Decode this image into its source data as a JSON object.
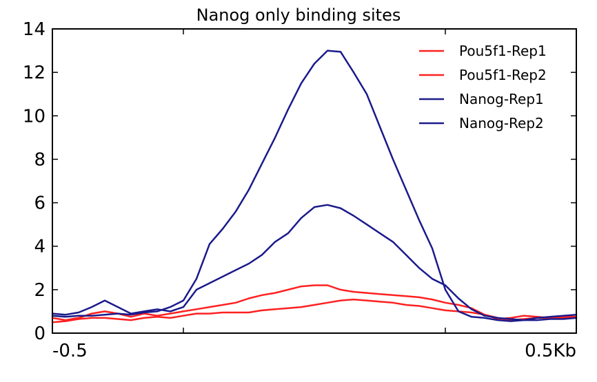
{
  "chart_data": {
    "type": "line",
    "title": "Nanog only binding sites",
    "xlabel": "",
    "ylabel": "",
    "xlim": [
      -0.5,
      0.5
    ],
    "ylim": [
      0,
      14
    ],
    "x_ticks": [
      -0.5,
      -0.25,
      0.25,
      0.5
    ],
    "x_tick_labels": [
      "-0.5",
      "",
      "",
      "0.5Kb"
    ],
    "y_ticks": [
      0,
      2,
      4,
      6,
      8,
      10,
      12,
      14
    ],
    "y_tick_labels": [
      "0",
      "2",
      "4",
      "6",
      "8",
      "10",
      "12",
      "14"
    ],
    "grid": false,
    "legend_position": "top-right",
    "colors": {
      "pou": "#ff2020",
      "nanog": "#1a1a8c"
    },
    "x": [
      -0.5,
      -0.475,
      -0.45,
      -0.425,
      -0.4,
      -0.375,
      -0.35,
      -0.325,
      -0.3,
      -0.275,
      -0.25,
      -0.225,
      -0.2,
      -0.175,
      -0.15,
      -0.125,
      -0.1,
      -0.075,
      -0.05,
      -0.025,
      0,
      0.025,
      0.05,
      0.075,
      0.1,
      0.125,
      0.15,
      0.175,
      0.2,
      0.225,
      0.25,
      0.275,
      0.3,
      0.325,
      0.35,
      0.375,
      0.4,
      0.425,
      0.45,
      0.475,
      0.5
    ],
    "series": [
      {
        "name": "Pou5f1-Rep1",
        "color": "#ff2020",
        "values": [
          0.7,
          0.6,
          0.7,
          0.9,
          1.0,
          0.9,
          0.75,
          0.9,
          0.8,
          0.9,
          1.0,
          1.1,
          1.2,
          1.3,
          1.4,
          1.6,
          1.75,
          1.85,
          2.0,
          2.15,
          2.2,
          2.2,
          2.0,
          1.9,
          1.85,
          1.8,
          1.75,
          1.7,
          1.65,
          1.55,
          1.4,
          1.3,
          1.15,
          0.85,
          0.65,
          0.7,
          0.8,
          0.75,
          0.7,
          0.75,
          0.75
        ]
      },
      {
        "name": "Pou5f1-Rep2",
        "color": "#ff2020",
        "values": [
          0.5,
          0.55,
          0.65,
          0.7,
          0.7,
          0.65,
          0.6,
          0.7,
          0.75,
          0.7,
          0.8,
          0.9,
          0.9,
          0.95,
          0.95,
          0.95,
          1.05,
          1.1,
          1.15,
          1.2,
          1.3,
          1.4,
          1.5,
          1.55,
          1.5,
          1.45,
          1.4,
          1.3,
          1.25,
          1.15,
          1.05,
          1.0,
          0.95,
          0.85,
          0.7,
          0.6,
          0.65,
          0.7,
          0.7,
          0.7,
          0.7
        ]
      },
      {
        "name": "Nanog-Rep1",
        "color": "#1a1a8c",
        "values": [
          0.9,
          0.85,
          0.95,
          1.2,
          1.5,
          1.2,
          0.9,
          1.0,
          1.1,
          1.0,
          1.2,
          2.0,
          2.3,
          2.6,
          2.9,
          3.2,
          3.6,
          4.2,
          4.6,
          5.3,
          5.8,
          5.9,
          5.75,
          5.4,
          5.0,
          4.6,
          4.2,
          3.6,
          3.0,
          2.5,
          2.2,
          1.6,
          1.1,
          0.8,
          0.7,
          0.65,
          0.6,
          0.7,
          0.75,
          0.8,
          0.85
        ]
      },
      {
        "name": "Nanog-Rep2",
        "color": "#1a1a8c",
        "values": [
          0.8,
          0.75,
          0.8,
          0.8,
          0.85,
          0.9,
          0.85,
          0.95,
          1.0,
          1.2,
          1.5,
          2.5,
          4.1,
          4.8,
          5.6,
          6.6,
          7.8,
          9.0,
          10.3,
          11.5,
          12.4,
          13.0,
          12.95,
          12.0,
          11.0,
          9.5,
          8.0,
          6.6,
          5.2,
          3.9,
          2.0,
          1.0,
          0.75,
          0.7,
          0.6,
          0.55,
          0.6,
          0.6,
          0.65,
          0.65,
          0.7
        ]
      }
    ]
  }
}
